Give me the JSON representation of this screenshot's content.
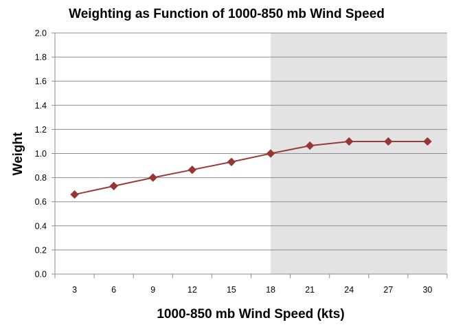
{
  "chart_data": {
    "type": "line",
    "title": "Weighting as Function of 1000-850 mb Wind Speed",
    "xlabel": "1000-850 mb Wind Speed (kts)",
    "ylabel": "Weight",
    "categories": [
      "3",
      "6",
      "9",
      "12",
      "15",
      "18",
      "21",
      "24",
      "27",
      "30"
    ],
    "series": [
      {
        "values": [
          0.66,
          0.73,
          0.8,
          0.865,
          0.93,
          1.0,
          1.065,
          1.1,
          1.1,
          1.1
        ]
      }
    ],
    "ylim": [
      0,
      2.0
    ],
    "yticks": [
      "0.0",
      "0.2",
      "0.4",
      "0.6",
      "0.8",
      "1.0",
      "1.2",
      "1.4",
      "1.6",
      "1.8",
      "2.0"
    ],
    "grid": true,
    "legend": "none",
    "shaded_region": {
      "from_x": 18,
      "to_x": 30,
      "color": "#e3e3e3"
    },
    "colors": {
      "series": "#9a3b3b",
      "marker": "#953735",
      "grid": "#8c8c8c",
      "axis": "#8c8c8c"
    }
  }
}
